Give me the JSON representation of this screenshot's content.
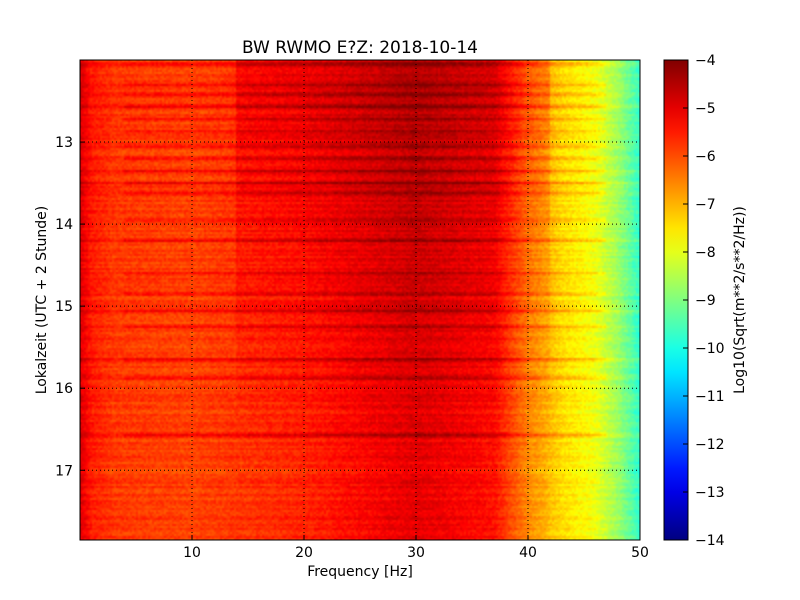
{
  "chart_data": {
    "type": "heatmap",
    "title": "BW RWMO E?Z: 2018-10-14",
    "xlabel": "Frequency [Hz]",
    "ylabel": "Lokalzeit (UTC + 2 Stunde)",
    "xlim": [
      0,
      50
    ],
    "ylim_hours": [
      12.0,
      17.85
    ],
    "y_inverted": true,
    "grid": true,
    "x_ticks": [
      10,
      20,
      30,
      40,
      50
    ],
    "y_ticks": [
      13,
      14,
      15,
      16,
      17
    ],
    "colorbar": {
      "label": "Log10(Sqrt(m**2/s**2/Hz))",
      "range": [
        -14,
        -4
      ],
      "ticks": [
        -4,
        -5,
        -6,
        -7,
        -8,
        -9,
        -10,
        -11,
        -12,
        -13,
        -14
      ],
      "colormap": "jet"
    },
    "profile": {
      "frequency_hz": [
        0,
        1,
        3,
        10,
        20,
        30,
        37,
        40,
        43,
        46,
        48,
        50
      ],
      "log10_amplitude": [
        -4.9,
        -5.5,
        -5.8,
        -5.9,
        -5.6,
        -5.0,
        -5.4,
        -6.6,
        -7.4,
        -7.9,
        -8.7,
        -9.8
      ]
    },
    "strong_bands_hour": [
      12.05,
      12.3,
      12.42,
      12.57,
      12.72,
      12.87,
      13.05,
      13.2,
      13.35,
      13.5,
      13.62,
      13.95,
      14.2,
      14.6,
      14.85,
      15.05,
      15.25,
      15.65,
      15.88,
      16.57
    ]
  }
}
